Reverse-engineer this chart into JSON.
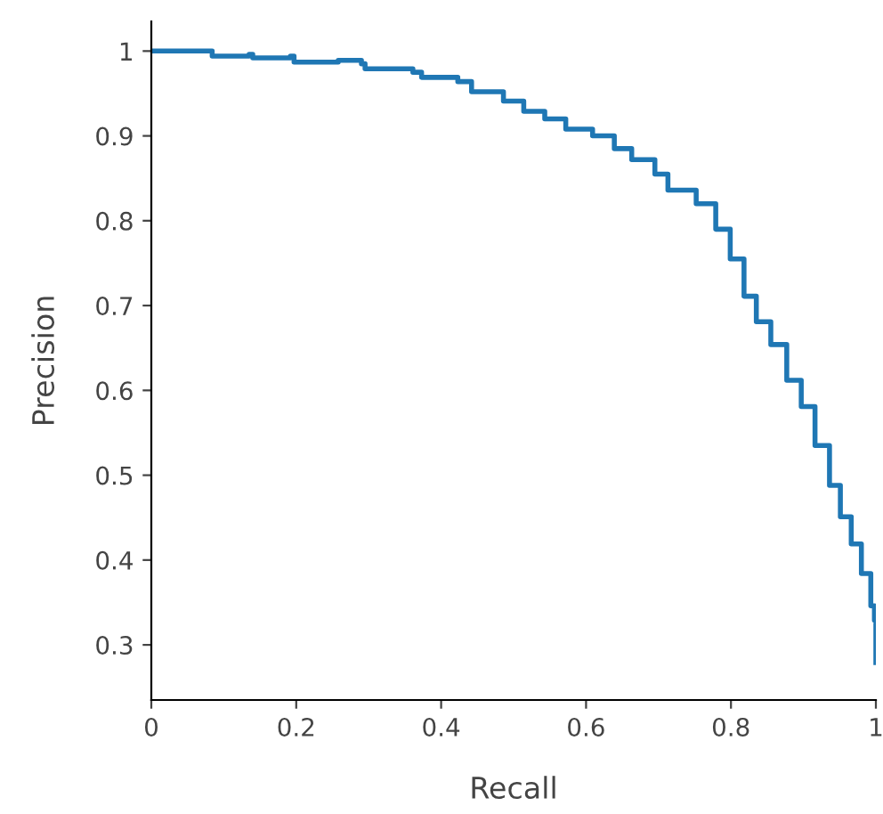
{
  "chart_data": {
    "type": "step",
    "xlabel": "Recall",
    "ylabel": "Precision",
    "color": "#1f77b4",
    "x": [
      0,
      0.079,
      0.084,
      0.135,
      0.14,
      0.192,
      0.197,
      0.258,
      0.29,
      0.295,
      0.361,
      0.373,
      0.423,
      0.442,
      0.486,
      0.514,
      0.543,
      0.572,
      0.609,
      0.639,
      0.663,
      0.695,
      0.713,
      0.752,
      0.779,
      0.799,
      0.818,
      0.835,
      0.855,
      0.877,
      0.897,
      0.916,
      0.936,
      0.951,
      0.966,
      0.98,
      0.993,
      0.998,
      1.0
    ],
    "values": [
      1,
      1,
      0.994,
      0.996,
      0.992,
      0.994,
      0.987,
      0.989,
      0.985,
      0.979,
      0.975,
      0.969,
      0.964,
      0.952,
      0.941,
      0.929,
      0.92,
      0.908,
      0.9,
      0.885,
      0.872,
      0.855,
      0.836,
      0.82,
      0.79,
      0.755,
      0.711,
      0.681,
      0.654,
      0.612,
      0.581,
      0.535,
      0.488,
      0.451,
      0.419,
      0.384,
      0.346,
      0.329,
      0.279
    ],
    "xlim": [
      0,
      1
    ],
    "ylim": [
      0.235,
      1.035
    ],
    "xticks": [
      0,
      0.2,
      0.4,
      0.6,
      0.8,
      1
    ],
    "yticks": [
      0.3,
      0.4,
      0.5,
      0.6,
      0.7,
      0.8,
      0.9,
      1
    ],
    "grid": false,
    "legend": false
  }
}
